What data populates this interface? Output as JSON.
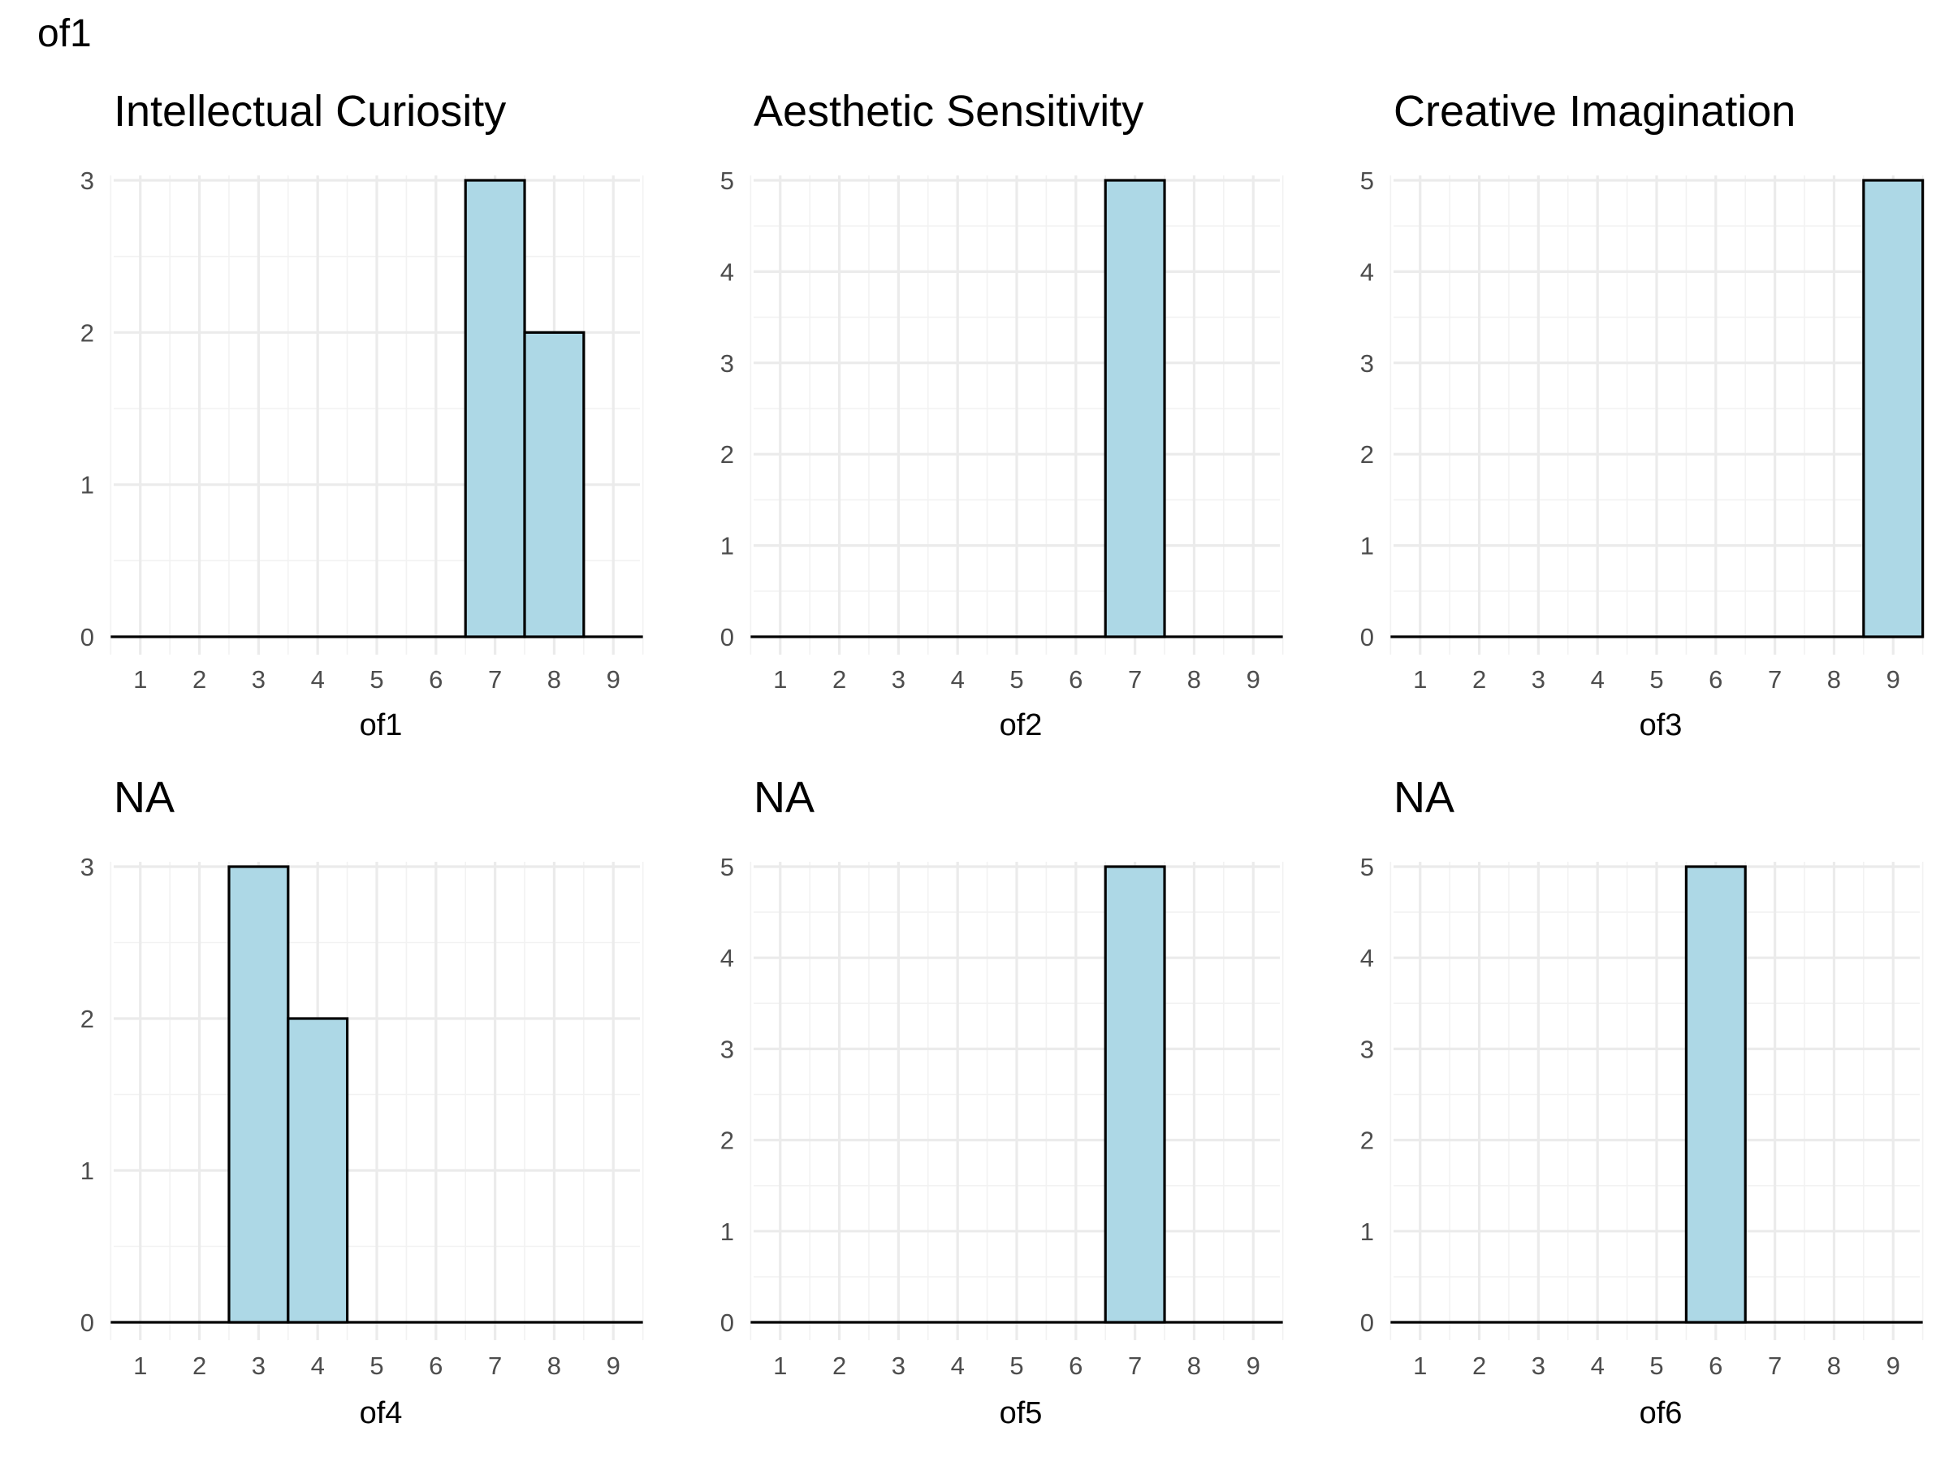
{
  "page_title": "of1",
  "colors": {
    "bar_fill": "#add8e6",
    "bar_stroke": "#000000",
    "grid": "#ebebeb"
  },
  "chart_data": [
    {
      "type": "bar",
      "title": "Intellectual Curiosity",
      "xlabel": "of1",
      "ylabel": "",
      "x": [
        1,
        2,
        3,
        4,
        5,
        6,
        7,
        8,
        9
      ],
      "values": [
        0,
        0,
        0,
        0,
        0,
        0,
        3,
        2,
        0
      ],
      "yticks": [
        0,
        1,
        2,
        3
      ],
      "ylim": [
        0,
        3
      ]
    },
    {
      "type": "bar",
      "title": "Aesthetic Sensitivity",
      "xlabel": "of2",
      "ylabel": "",
      "x": [
        1,
        2,
        3,
        4,
        5,
        6,
        7,
        8,
        9
      ],
      "values": [
        0,
        0,
        0,
        0,
        0,
        0,
        5,
        0,
        0
      ],
      "yticks": [
        0,
        1,
        2,
        3,
        4,
        5
      ],
      "ylim": [
        0,
        5
      ]
    },
    {
      "type": "bar",
      "title": "Creative Imagination",
      "xlabel": "of3",
      "ylabel": "",
      "x": [
        1,
        2,
        3,
        4,
        5,
        6,
        7,
        8,
        9
      ],
      "values": [
        0,
        0,
        0,
        0,
        0,
        0,
        0,
        0,
        5
      ],
      "yticks": [
        0,
        1,
        2,
        3,
        4,
        5
      ],
      "ylim": [
        0,
        5
      ]
    },
    {
      "type": "bar",
      "title": "NA",
      "xlabel": "of4",
      "ylabel": "",
      "x": [
        1,
        2,
        3,
        4,
        5,
        6,
        7,
        8,
        9
      ],
      "values": [
        0,
        0,
        3,
        2,
        0,
        0,
        0,
        0,
        0
      ],
      "yticks": [
        0,
        1,
        2,
        3
      ],
      "ylim": [
        0,
        3
      ]
    },
    {
      "type": "bar",
      "title": "NA",
      "xlabel": "of5",
      "ylabel": "",
      "x": [
        1,
        2,
        3,
        4,
        5,
        6,
        7,
        8,
        9
      ],
      "values": [
        0,
        0,
        0,
        0,
        0,
        0,
        5,
        0,
        0
      ],
      "yticks": [
        0,
        1,
        2,
        3,
        4,
        5
      ],
      "ylim": [
        0,
        5
      ]
    },
    {
      "type": "bar",
      "title": "NA",
      "xlabel": "of6",
      "ylabel": "",
      "x": [
        1,
        2,
        3,
        4,
        5,
        6,
        7,
        8,
        9
      ],
      "values": [
        0,
        0,
        0,
        0,
        0,
        5,
        0,
        0,
        0
      ],
      "yticks": [
        0,
        1,
        2,
        3,
        4,
        5
      ],
      "ylim": [
        0,
        5
      ]
    }
  ]
}
